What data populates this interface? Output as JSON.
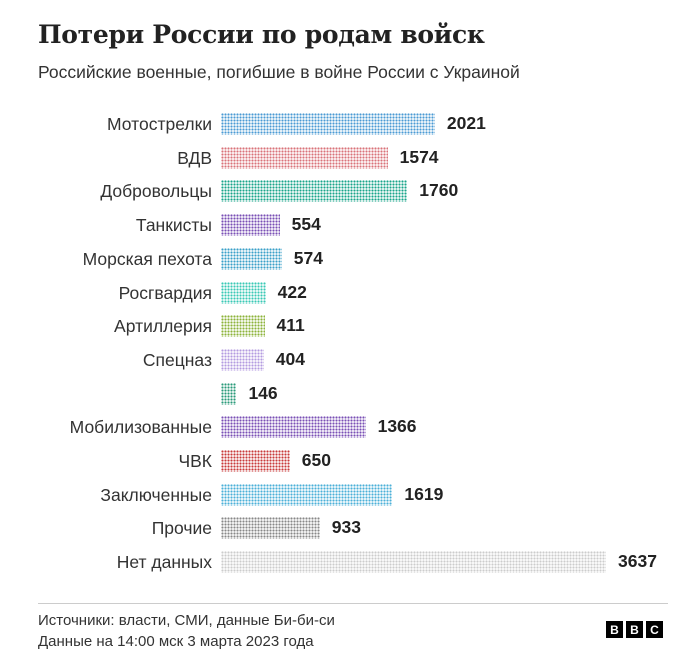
{
  "header": {
    "title": "Потери России по родам войск",
    "subtitle": "Российские военные, погибшие в войне России с Украиной"
  },
  "chart_data": {
    "type": "bar",
    "orientation": "horizontal",
    "title": "Потери России по родам войск",
    "subtitle": "Российские военные, погибшие в войне России с Украиной",
    "categories": [
      "Мотострелки",
      "ВДВ",
      "Добровольцы",
      "Танкисты",
      "Морская пехота",
      "Росгвардия",
      "Артиллерия",
      "Спецназ",
      "",
      "Мобилизованные",
      "ЧВК",
      "Заключенные",
      "Прочие",
      "Нет данных"
    ],
    "values": [
      2021,
      1574,
      1760,
      554,
      574,
      422,
      411,
      404,
      146,
      1366,
      650,
      1619,
      933,
      3637
    ],
    "colors": [
      "#4a9ad4",
      "#d9737a",
      "#1aa58a",
      "#7a4fb5",
      "#3aa0c8",
      "#3ac9b5",
      "#8db33a",
      "#b39be0",
      "#2a9a7a",
      "#7a4fb5",
      "#c83a3a",
      "#4bb0d8",
      "#888888",
      "#cccccc"
    ],
    "xlim": [
      0,
      3637
    ],
    "grid": false,
    "legend": "none"
  },
  "footer": {
    "source": "Источники: власти, СМИ, данные Би-би-си",
    "date": "Данные на 14:00 мск 3 марта 2023 года",
    "logo": [
      "B",
      "B",
      "C"
    ]
  }
}
